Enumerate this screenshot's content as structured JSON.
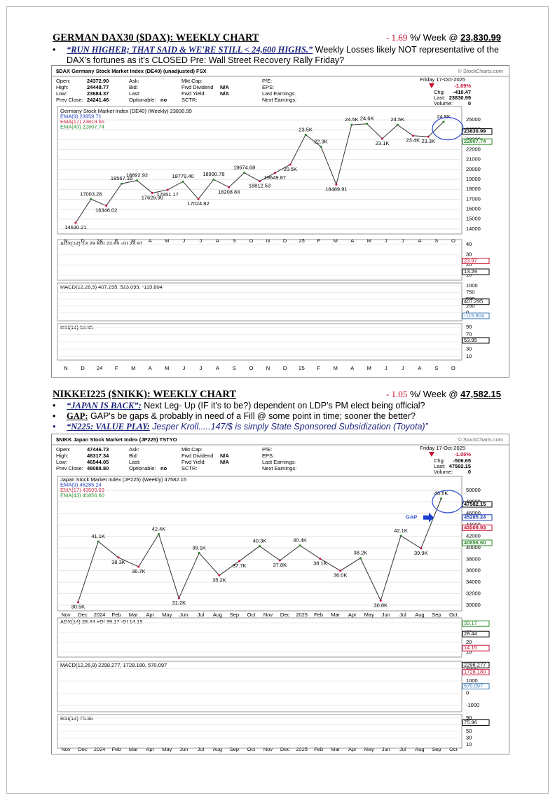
{
  "sections": [
    {
      "title": "GERMAN DAX30 ($DAX): WEEKLY CHART",
      "change": "- 1.69",
      "change_unit": "%/ Week @",
      "price": "23,830.99",
      "bullets": [
        {
          "emphasis": "“RUN HIGHER; THAT SAID & WE'RE STILL < 24,600 HIGHS.”",
          "text": " Weekly Losses likely NOT representative of the DAX's fortunes as it's CLOSED Pre: Wall Street Recovery Rally Friday?"
        }
      ],
      "chart": {
        "title": "$DAX Germany Stock Market Index (DE40) (unadjusted) FSX",
        "credit": "© StockCharts.com",
        "info": [
          [
            {
              "label": "Open:",
              "value": "24372.90"
            },
            {
              "label": "High:",
              "value": "24448.77"
            },
            {
              "label": "Low:",
              "value": "23684.37"
            },
            {
              "label": "Prev Close:",
              "value": "24241.46"
            }
          ],
          [
            {
              "label": "Ask:"
            },
            {
              "label": "Bid:"
            },
            {
              "label": "Last:"
            },
            {
              "label": "Optionable:",
              "value": "no"
            }
          ],
          [
            {
              "label": "Mkt Cap:"
            },
            {
              "label": "Fwd Dividend",
              "value": "N/A"
            },
            {
              "label": "Fwd Yield:",
              "value": "N/A"
            },
            {
              "label": "SCTR:"
            }
          ],
          [
            {
              "label": "P/E:"
            },
            {
              "label": "EPS:"
            },
            {
              "label": "Last Earnings:"
            },
            {
              "label": "Next Earnings:"
            }
          ]
        ],
        "date": "Friday 17-Oct-2025",
        "pct": "-1.69%",
        "quote": [
          {
            "label": "Chg:",
            "value": "-410.47"
          },
          {
            "label": "Last:",
            "value": "23830.99"
          },
          {
            "label": "Volume:",
            "value": "0"
          }
        ],
        "legend": [
          {
            "text": "Germany Stock Market Index (DE40) (Weekly) 23830.99",
            "color": "#000000"
          },
          {
            "text": "EMA(9) 23959.71",
            "color": "#1f3fbf"
          },
          {
            "text": "EMA(17) 23819.65",
            "color": "#c8102e"
          },
          {
            "text": "EMA(43) 22807.74",
            "color": "#2e8b2e"
          }
        ],
        "ylim": [
          13500,
          25500
        ],
        "yticks": [
          14000,
          15000,
          16000,
          17000,
          18000,
          19000,
          20000,
          21000,
          22000,
          23000,
          24000,
          25000
        ],
        "badges": [
          {
            "value": 23830.99,
            "color": "#000000"
          },
          {
            "value": 22807.74,
            "color": "#2e8b2e"
          }
        ],
        "annotations": [
          14630.21,
          17003.28,
          16346.02,
          18567.16,
          18892.92,
          {
            "value": 17626.9,
            "label": "17626.90"
          },
          17951.17,
          {
            "value": 18779.4,
            "label": "18779.40"
          },
          17024.82,
          18990.78,
          18208.84,
          19674.68,
          18812.53,
          19649.87,
          {
            "value": 20500,
            "label": "20.5K"
          },
          {
            "value": 23500,
            "label": "23.5K"
          },
          {
            "value": 22300,
            "label": "22.3K"
          },
          18489.91,
          {
            "value": 24500,
            "label": "24.5K"
          },
          {
            "value": 24600,
            "label": "24.6K"
          },
          {
            "value": 23100,
            "label": "23.1K"
          },
          {
            "value": 24500,
            "label": "24.5K"
          },
          {
            "value": 23400,
            "label": "23.4K"
          },
          {
            "value": 23300,
            "label": "23.3K"
          },
          {
            "value": 24800,
            "label": "24.8K"
          }
        ],
        "categories": [
          "N",
          "D",
          "24",
          "F",
          "M",
          "A",
          "M",
          "J",
          "J",
          "A",
          "S",
          "O",
          "N",
          "D",
          "25",
          "F",
          "M",
          "A",
          "M",
          "J",
          "J",
          "A",
          "S",
          "O"
        ],
        "panes": [
          {
            "title": "ADX(14) 13.29 +DI 22.65 -DI 23.97",
            "ylim": [
              5,
              45
            ],
            "yticks": [
              10,
              20,
              30,
              40
            ],
            "badges": [
              {
                "value": 23.97,
                "color": "#c8102e"
              },
              {
                "value": 13.29,
                "color": "#000000"
              }
            ]
          },
          {
            "title": "MACD(12,26,9) 407.295, 523.099, -115.804",
            "ylim": [
              -300,
              1100
            ],
            "yticks": [
              0,
              250,
              500,
              750,
              1000
            ],
            "badges": [
              {
                "value": 407.295,
                "color": "#000000"
              },
              {
                "value": -115.804,
                "color": "#3a7ab8"
              }
            ]
          },
          {
            "title": "RSI(14) 53.95",
            "ylim": [
              0,
              100
            ],
            "yticks": [
              10,
              30,
              50,
              70,
              90
            ],
            "badges": [
              {
                "value": 53.95,
                "color": "#000000"
              }
            ]
          }
        ]
      }
    },
    {
      "title": "NIKKEI225 ($NIKK): WEEKLY CHART",
      "change": "- 1.05",
      "change_unit": "%/ Week @",
      "price": "47,582.15",
      "bullets": [
        {
          "emphasis": "“JAPAN IS BACK”:",
          "text": " Next Leg- Up (IF it's to be?) dependent on LDP's PM elect being official?"
        },
        {
          "emphasis": "GAP:",
          "text": " GAP's be gaps & probably in need of a Fill @ some point in time; sooner the better?"
        },
        {
          "emphasis": "“N225: VALUE PLAY:",
          "text": " Jesper Kroll.....147/$ is simply State Sponsored Subsidization (Toyota)”"
        }
      ],
      "chart": {
        "title": "$NIKK Japan Stock Market Index (JP225) TSTYO",
        "credit": "© StockCharts.com",
        "info": [
          [
            {
              "label": "Open:",
              "value": "47446.73"
            },
            {
              "label": "High:",
              "value": "48317.34"
            },
            {
              "label": "Low:",
              "value": "46544.05"
            },
            {
              "label": "Prev Close:",
              "value": "48088.80"
            }
          ],
          [
            {
              "label": "Ask:"
            },
            {
              "label": "Bid:"
            },
            {
              "label": "Last:"
            },
            {
              "label": "Optionable:",
              "value": "no"
            }
          ],
          [
            {
              "label": "Mkt Cap:"
            },
            {
              "label": "Fwd Dividend",
              "value": "N/A"
            },
            {
              "label": "Fwd Yield:",
              "value": "N/A"
            },
            {
              "label": "SCTR:"
            }
          ],
          [
            {
              "label": "P/E:"
            },
            {
              "label": "EPS:"
            },
            {
              "label": "Last Earnings:"
            },
            {
              "label": "Next Earnings:"
            }
          ]
        ],
        "date": "Friday 17-Oct-2025",
        "pct": "-1.05%",
        "quote": [
          {
            "label": "Chg:",
            "value": "-506.65"
          },
          {
            "label": "Last:",
            "value": "47582.15"
          },
          {
            "label": "Volume:",
            "value": "0"
          }
        ],
        "legend": [
          {
            "text": "Japan Stock Market Index (JP225) (Weekly) 47582.15",
            "color": "#000000"
          },
          {
            "text": "EMA(9) 45285.24",
            "color": "#1f3fbf"
          },
          {
            "text": "EMA(17) 43509.93",
            "color": "#c8102e"
          },
          {
            "text": "EMA(43) 40856.60",
            "color": "#2e8b2e"
          }
        ],
        "ylim": [
          29000,
          51000
        ],
        "yticks": [
          30000,
          32000,
          34000,
          36000,
          38000,
          40000,
          42000,
          44000,
          46000,
          48000,
          50000
        ],
        "badges": [
          {
            "value": 47582.15,
            "color": "#000000"
          },
          {
            "value": 45285.24,
            "color": "#1f3fbf"
          },
          {
            "value": 43509.93,
            "color": "#c8102e"
          },
          {
            "value": 40856.6,
            "label": "40856.60",
            "color": "#2e8b2e"
          }
        ],
        "annotations": [
          {
            "value": 30500,
            "label": "30.5K"
          },
          {
            "value": 41100,
            "label": "41.1K"
          },
          {
            "value": 38300,
            "label": "38.3K"
          },
          {
            "value": 36700,
            "label": "36.7K"
          },
          {
            "value": 42400,
            "label": "42.4K"
          },
          {
            "value": 31200,
            "label": "31.2K"
          },
          {
            "value": 39100,
            "label": "39.1K"
          },
          {
            "value": 35200,
            "label": "35.2K"
          },
          {
            "value": 37700,
            "label": "37.7K"
          },
          {
            "value": 40300,
            "label": "40.3K"
          },
          {
            "value": 37800,
            "label": "37.8K"
          },
          {
            "value": 40400,
            "label": "40.4K"
          },
          {
            "value": 38100,
            "label": "38.1K"
          },
          {
            "value": 36000,
            "label": "36.0K"
          },
          {
            "value": 38200,
            "label": "38.2K"
          },
          {
            "value": 30800,
            "label": "30.8K"
          },
          {
            "value": 42100,
            "label": "42.1K"
          },
          {
            "value": 39900,
            "label": "39.9K"
          },
          {
            "value": 48600,
            "label": "48.6K"
          }
        ],
        "marker": "GAP",
        "categories": [
          "Nov",
          "Dec",
          "2024",
          "Feb",
          "Mar",
          "Apr",
          "May",
          "Jun",
          "Jul",
          "Aug",
          "Sep",
          "Oct",
          "Nov",
          "Dec",
          "2025",
          "Feb",
          "Mar",
          "Apr",
          "May",
          "Jun",
          "Jul",
          "Aug",
          "Sep",
          "Oct"
        ],
        "panes": [
          {
            "title": "ADX(14) 28.44 +DI 39.17 -DI 14.15",
            "ylim": [
              5,
              45
            ],
            "yticks": [
              10,
              20,
              30,
              40
            ],
            "badges": [
              {
                "value": 39.17,
                "color": "#2e8b2e"
              },
              {
                "value": 28.44,
                "color": "#000000"
              },
              {
                "value": 14.15,
                "color": "#c8102e"
              }
            ]
          },
          {
            "title": "MACD(12,26,9) 2298.277, 1728.180, 570.097",
            "ylim": [
              -1500,
              2600
            ],
            "yticks": [
              -1000,
              0,
              1000,
              2000
            ],
            "badges": [
              {
                "value": 2298.277,
                "color": "#000000"
              },
              {
                "value": 1728.18,
                "label": "1728.180",
                "color": "#c8102e"
              },
              {
                "value": 570.097,
                "color": "#3a7ab8"
              }
            ]
          },
          {
            "title": "RSI(14) 75.96",
            "ylim": [
              0,
              100
            ],
            "yticks": [
              10,
              30,
              50,
              70,
              90
            ],
            "badges": [
              {
                "value": 75.96,
                "color": "#000000"
              }
            ]
          }
        ]
      }
    }
  ]
}
